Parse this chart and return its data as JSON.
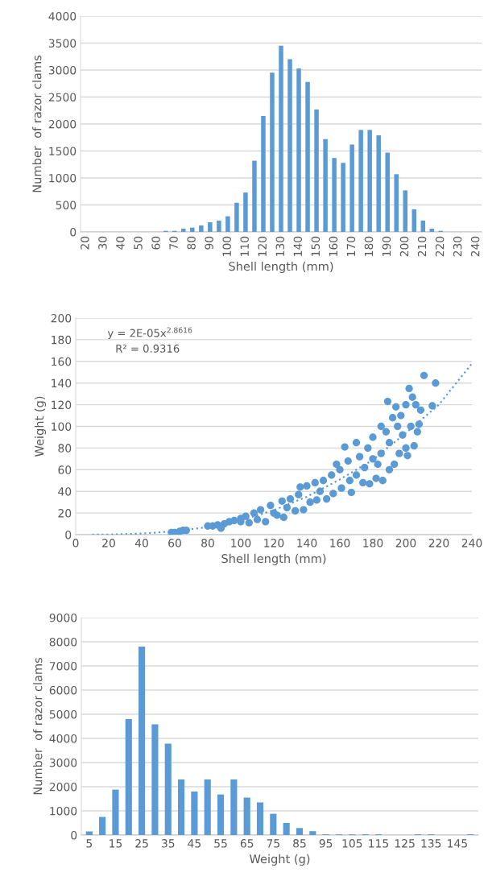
{
  "chart_data": [
    {
      "type": "bar",
      "xlabel": "Shell length (mm)",
      "ylabel": "Number  of razor clams",
      "categories": [
        "20",
        null,
        "30",
        null,
        "40",
        null,
        "50",
        null,
        "60",
        null,
        "70",
        null,
        "80",
        null,
        "90",
        null,
        "100",
        null,
        "110",
        null,
        "120",
        null,
        "130",
        null,
        "140",
        null,
        "150",
        null,
        "160",
        null,
        "170",
        null,
        "180",
        null,
        "190",
        null,
        "200",
        null,
        "210",
        null,
        "220",
        null,
        "230",
        null,
        "240"
      ],
      "values": [
        0,
        0,
        0,
        0,
        0,
        0,
        0,
        0,
        0,
        20,
        20,
        60,
        80,
        120,
        180,
        210,
        290,
        540,
        730,
        1320,
        2150,
        2950,
        3450,
        3200,
        3030,
        2780,
        2270,
        1720,
        1370,
        1280,
        1620,
        1890,
        1890,
        1790,
        1470,
        1070,
        770,
        420,
        210,
        60,
        20,
        0,
        0,
        0,
        0
      ],
      "color": "#5b9bd5",
      "ylim": [
        0,
        4000
      ],
      "yticks": [
        0,
        500,
        1000,
        1500,
        2000,
        2500,
        3000,
        3500,
        4000
      ],
      "grid": "y",
      "legend": false
    },
    {
      "type": "scatter",
      "xlabel": "Shell length (mm)",
      "ylabel": "Weight (g)",
      "xlim": [
        0,
        240
      ],
      "xticks": [
        0,
        20,
        40,
        60,
        80,
        100,
        120,
        140,
        160,
        180,
        200,
        220,
        240
      ],
      "ylim": [
        0,
        200
      ],
      "yticks": [
        0,
        20,
        40,
        60,
        80,
        100,
        120,
        140,
        160,
        180,
        200
      ],
      "grid": "y",
      "legend": false,
      "annotations": [
        "y = 2E-05x$^{2.8616}$",
        "R² = 0.9316"
      ],
      "series": [
        {
          "type": "scatter",
          "color": "#5b9bd5",
          "marker": "circle",
          "x": [
            58,
            60,
            63,
            65,
            67,
            80,
            83,
            86,
            88,
            90,
            93,
            96,
            100,
            100,
            103,
            105,
            108,
            110,
            112,
            115,
            118,
            120,
            122,
            125,
            126,
            128,
            130,
            133,
            135,
            136,
            138,
            140,
            142,
            145,
            146,
            148,
            150,
            152,
            155,
            156,
            158,
            160,
            161,
            163,
            165,
            166,
            167,
            170,
            170,
            172,
            174,
            175,
            177,
            178,
            180,
            180,
            182,
            183,
            185,
            185,
            186,
            188,
            189,
            190,
            190,
            192,
            193,
            194,
            195,
            196,
            197,
            198,
            200,
            200,
            201,
            202,
            203,
            204,
            205,
            206,
            207,
            208,
            209,
            211,
            216,
            218
          ],
          "values": [
            2,
            2,
            3,
            4,
            4,
            8,
            8,
            9,
            6,
            10,
            12,
            13,
            15,
            12,
            17,
            11,
            20,
            14,
            23,
            12,
            27,
            20,
            18,
            31,
            16,
            25,
            33,
            22,
            37,
            44,
            23,
            45,
            30,
            48,
            32,
            40,
            50,
            33,
            55,
            38,
            65,
            60,
            43,
            81,
            68,
            50,
            39,
            85,
            55,
            72,
            48,
            62,
            80,
            47,
            90,
            70,
            52,
            65,
            100,
            75,
            50,
            95,
            123,
            60,
            85,
            108,
            65,
            118,
            100,
            75,
            110,
            92,
            120,
            80,
            73,
            135,
            100,
            127,
            82,
            120,
            95,
            102,
            115,
            147,
            119,
            140
          ]
        },
        {
          "type": "line",
          "color": "#5b9bd5",
          "marker": "none",
          "line_style": "dotted",
          "x": [
            10,
            20,
            40,
            60,
            80,
            100,
            120,
            140,
            160,
            180,
            200,
            220,
            240
          ],
          "values": [
            0,
            0.1,
            1,
            3.2,
            7,
            13.3,
            22.6,
            35,
            51,
            69,
            94,
            120,
            158
          ]
        }
      ]
    },
    {
      "type": "bar",
      "xlabel": "Weight (g)",
      "ylabel": "Number  of razor clams",
      "categories": [
        "5",
        null,
        "15",
        null,
        "25",
        null,
        "35",
        null,
        "45",
        null,
        "55",
        null,
        "65",
        null,
        "75",
        null,
        "85",
        null,
        "95",
        null,
        "105",
        null,
        "115",
        null,
        "125",
        null,
        "135",
        null,
        "145",
        null
      ],
      "values": [
        150,
        750,
        1880,
        4800,
        7800,
        4580,
        3780,
        2300,
        1800,
        2300,
        1680,
        2300,
        1550,
        1350,
        880,
        500,
        290,
        160,
        30,
        30,
        30,
        30,
        30,
        0,
        0,
        30,
        30,
        0,
        0,
        30
      ],
      "color": "#5b9bd5",
      "ylim": [
        0,
        9000
      ],
      "yticks": [
        0,
        1000,
        2000,
        3000,
        4000,
        5000,
        6000,
        7000,
        8000,
        9000
      ],
      "grid": "y",
      "legend": false
    }
  ]
}
